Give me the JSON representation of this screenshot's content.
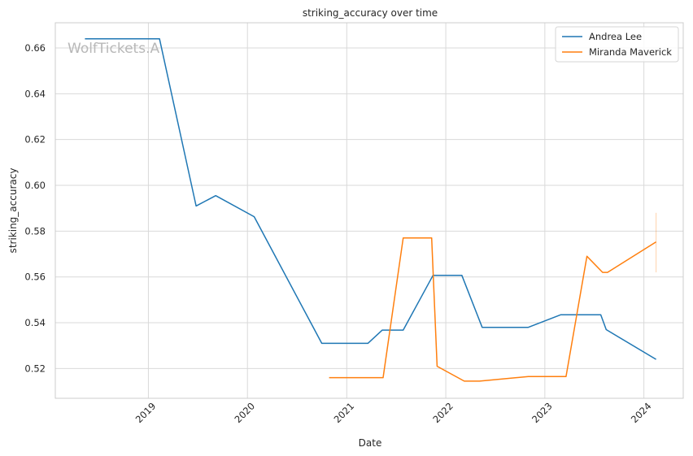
{
  "watermark": "WolfTickets.A",
  "chart_data": {
    "type": "line",
    "title": "striking_accuracy over time",
    "xlabel": "Date",
    "ylabel": "striking_accuracy",
    "x_tick_labels": [
      "2019",
      "2020",
      "2021",
      "2022",
      "2023",
      "2024"
    ],
    "y_tick_labels": [
      "0.52",
      "0.54",
      "0.56",
      "0.58",
      "0.60",
      "0.62",
      "0.64",
      "0.66"
    ],
    "y_ticks": [
      0.52,
      0.54,
      0.56,
      0.58,
      0.6,
      0.62,
      0.64,
      0.66
    ],
    "xlim": [
      "2018-01-23",
      "2024-05-25"
    ],
    "ylim": [
      0.507,
      0.671
    ],
    "grid": true,
    "legend_position": "top-right",
    "series": [
      {
        "name": "Andrea Lee",
        "color": "#1f77b4",
        "points": [
          [
            "2018-05-12",
            0.664
          ],
          [
            "2019-02-11",
            0.664
          ],
          [
            "2019-06-26",
            0.591
          ],
          [
            "2019-09-06",
            0.5955
          ],
          [
            "2020-01-26",
            0.5863
          ],
          [
            "2020-10-01",
            0.531
          ],
          [
            "2021-03-20",
            0.531
          ],
          [
            "2021-05-12",
            0.5368
          ],
          [
            "2021-07-28",
            0.5368
          ],
          [
            "2021-11-15",
            0.5607
          ],
          [
            "2022-03-01",
            0.5607
          ],
          [
            "2022-05-15",
            0.538
          ],
          [
            "2022-11-01",
            0.538
          ],
          [
            "2023-03-01",
            0.5435
          ],
          [
            "2023-07-26",
            0.5435
          ],
          [
            "2023-08-15",
            0.537
          ],
          [
            "2024-02-15",
            0.524
          ]
        ]
      },
      {
        "name": "Miranda Maverick",
        "color": "#ff7f0e",
        "points": [
          [
            "2020-10-28",
            0.516
          ],
          [
            "2021-05-15",
            0.516
          ],
          [
            "2021-07-28",
            0.577
          ],
          [
            "2021-11-10",
            0.577
          ],
          [
            "2021-11-30",
            0.521
          ],
          [
            "2022-03-10",
            0.5145
          ],
          [
            "2022-05-05",
            0.5145
          ],
          [
            "2022-11-01",
            0.5165
          ],
          [
            "2023-03-20",
            0.5165
          ],
          [
            "2023-06-05",
            0.569
          ],
          [
            "2023-08-02",
            0.562
          ],
          [
            "2023-08-20",
            0.562
          ],
          [
            "2024-02-15",
            0.5753
          ]
        ]
      }
    ],
    "error_bar": {
      "series": "Miranda Maverick",
      "x": "2024-02-15",
      "low": 0.562,
      "high": 0.588
    }
  }
}
